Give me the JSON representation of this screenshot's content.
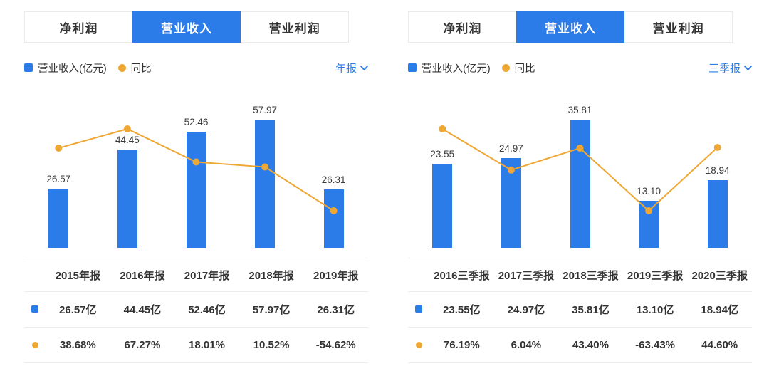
{
  "colors": {
    "blue": "#2b7ce9",
    "orange": "#efa734",
    "red": "#f04c4c",
    "green": "#22a56c"
  },
  "chart_data": [
    {
      "type": "bar",
      "subtype": "bar-with-line-overlay",
      "categories": [
        "2015年报",
        "2016年报",
        "2017年报",
        "2018年报",
        "2019年报"
      ],
      "series": [
        {
          "name": "营业收入(亿元)",
          "type": "bar",
          "unit": "亿元",
          "values": [
            26.57,
            44.45,
            52.46,
            57.97,
            26.31
          ]
        },
        {
          "name": "同比",
          "type": "line",
          "unit": "%",
          "values": [
            38.68,
            67.27,
            18.01,
            10.52,
            -54.62
          ]
        }
      ],
      "legend_position": "top-left",
      "grid": false,
      "data_labels": true
    },
    {
      "type": "bar",
      "subtype": "bar-with-line-overlay",
      "categories": [
        "2016三季报",
        "2017三季报",
        "2018三季报",
        "2019三季报",
        "2020三季报"
      ],
      "series": [
        {
          "name": "营业收入(亿元)",
          "type": "bar",
          "unit": "亿元",
          "values": [
            23.55,
            24.97,
            35.81,
            13.1,
            18.94
          ]
        },
        {
          "name": "同比",
          "type": "line",
          "unit": "%",
          "values": [
            76.19,
            6.04,
            43.4,
            -63.43,
            44.6
          ]
        }
      ],
      "legend_position": "top-left",
      "grid": false,
      "data_labels": true
    }
  ],
  "panels": [
    {
      "tabs": [
        {
          "label": "净利润",
          "active": false
        },
        {
          "label": "营业收入",
          "active": true
        },
        {
          "label": "营业利润",
          "active": false
        }
      ],
      "legend": {
        "bar_label": "营业收入(亿元)",
        "line_label": "同比"
      },
      "period": "年报",
      "table": {
        "headers": [
          "2015年报",
          "2016年报",
          "2017年报",
          "2018年报",
          "2019年报"
        ],
        "revenue_row": [
          "26.57亿",
          "44.45亿",
          "52.46亿",
          "57.97亿",
          "26.31亿"
        ],
        "yoy_row": [
          "38.68%",
          "67.27%",
          "18.01%",
          "10.52%",
          "-54.62%"
        ]
      }
    },
    {
      "tabs": [
        {
          "label": "净利润",
          "active": false
        },
        {
          "label": "营业收入",
          "active": true
        },
        {
          "label": "营业利润",
          "active": false
        }
      ],
      "legend": {
        "bar_label": "营业收入(亿元)",
        "line_label": "同比"
      },
      "period": "三季报",
      "table": {
        "headers": [
          "2016三季报",
          "2017三季报",
          "2018三季报",
          "2019三季报",
          "2020三季报"
        ],
        "revenue_row": [
          "23.55亿",
          "24.97亿",
          "35.81亿",
          "13.10亿",
          "18.94亿"
        ],
        "yoy_row": [
          "76.19%",
          "6.04%",
          "43.40%",
          "-63.43%",
          "44.60%"
        ]
      }
    }
  ]
}
